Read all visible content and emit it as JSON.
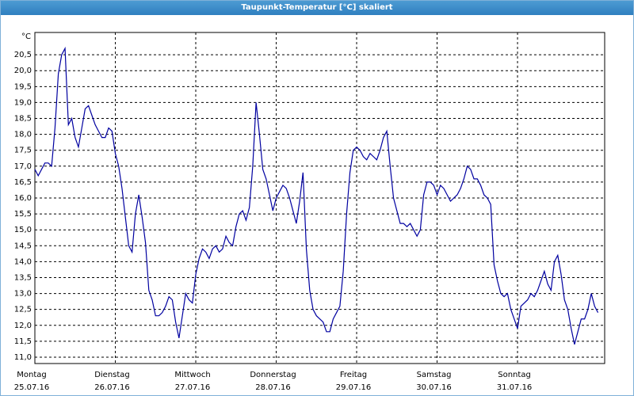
{
  "chart_data": {
    "type": "line",
    "title": "Taupunkt-Temperatur [°C] skaliert",
    "y_unit": "°C",
    "xlim": [
      0,
      170
    ],
    "xticks": [
      {
        "value": 0,
        "label": "Montag"
      },
      {
        "value": 24,
        "label": "Dienstag"
      },
      {
        "value": 48,
        "label": "Mittwoch"
      },
      {
        "value": 72,
        "label": "Donnerstag"
      },
      {
        "value": 96,
        "label": "Freitag"
      },
      {
        "value": 120,
        "label": "Samstag"
      },
      {
        "value": 144,
        "label": "Sonntag"
      }
    ],
    "xtick_dates": [
      "25.07.16",
      "26.07.16",
      "27.07.16",
      "28.07.16",
      "29.07.16",
      "30.07.16",
      "31.07.16"
    ],
    "ylim": [
      10.8,
      21.2
    ],
    "yticks": [
      {
        "value": 11.0,
        "label": "11,0"
      },
      {
        "value": 11.5,
        "label": "11,5"
      },
      {
        "value": 12.0,
        "label": "12,0"
      },
      {
        "value": 12.5,
        "label": "12,5"
      },
      {
        "value": 13.0,
        "label": "13,0"
      },
      {
        "value": 13.5,
        "label": "13,5"
      },
      {
        "value": 14.0,
        "label": "14,0"
      },
      {
        "value": 14.5,
        "label": "14,5"
      },
      {
        "value": 15.0,
        "label": "15,0"
      },
      {
        "value": 15.5,
        "label": "15,5"
      },
      {
        "value": 16.0,
        "label": "16,0"
      },
      {
        "value": 16.5,
        "label": "16,5"
      },
      {
        "value": 17.0,
        "label": "17,0"
      },
      {
        "value": 17.5,
        "label": "17,5"
      },
      {
        "value": 18.0,
        "label": "18,0"
      },
      {
        "value": 18.5,
        "label": "18,5"
      },
      {
        "value": 19.0,
        "label": "19,0"
      },
      {
        "value": 19.5,
        "label": "19,5"
      },
      {
        "value": 20.0,
        "label": "20,0"
      },
      {
        "value": 20.5,
        "label": "20,5"
      }
    ],
    "grid": true,
    "color": "#0000a0",
    "x": [
      0,
      1,
      2,
      3,
      4,
      5,
      6,
      7,
      8,
      9,
      10,
      11,
      12,
      13,
      14,
      15,
      16,
      17,
      18,
      19,
      20,
      21,
      22,
      23,
      24,
      25,
      26,
      27,
      28,
      29,
      30,
      31,
      32,
      33,
      34,
      35,
      36,
      37,
      38,
      39,
      40,
      41,
      42,
      43,
      44,
      45,
      46,
      47,
      48,
      49,
      50,
      51,
      52,
      53,
      54,
      55,
      56,
      57,
      58,
      59,
      60,
      61,
      62,
      63,
      64,
      65,
      66,
      67,
      68,
      69,
      70,
      71,
      72,
      73,
      74,
      75,
      76,
      77,
      78,
      79,
      80,
      81,
      82,
      83,
      84,
      85,
      86,
      87,
      88,
      89,
      90,
      91,
      92,
      93,
      94,
      95,
      96,
      97,
      98,
      99,
      100,
      101,
      102,
      103,
      104,
      105,
      106,
      107,
      108,
      109,
      110,
      111,
      112,
      113,
      114,
      115,
      116,
      117,
      118,
      119,
      120,
      121,
      122,
      123,
      124,
      125,
      126,
      127,
      128,
      129,
      130,
      131,
      132,
      133,
      134,
      135,
      136,
      137,
      138,
      139,
      140,
      141,
      142,
      143,
      144,
      145,
      146,
      147,
      148,
      149,
      150,
      151,
      152,
      153,
      154,
      155,
      156,
      157,
      158,
      159,
      160,
      161,
      162,
      163,
      164,
      165,
      166,
      167,
      168
    ],
    "values": [
      16.9,
      16.7,
      16.9,
      17.1,
      17.1,
      17.0,
      18.2,
      19.9,
      20.5,
      20.7,
      18.3,
      18.5,
      17.9,
      17.6,
      18.2,
      18.8,
      18.9,
      18.6,
      18.3,
      18.1,
      17.9,
      17.9,
      18.2,
      18.1,
      17.4,
      17.0,
      16.3,
      15.4,
      14.5,
      14.3,
      15.5,
      16.1,
      15.4,
      14.6,
      13.1,
      12.8,
      12.3,
      12.3,
      12.4,
      12.6,
      12.9,
      12.8,
      12.1,
      11.6,
      12.3,
      13.0,
      12.8,
      12.7,
      13.6,
      14.1,
      14.4,
      14.3,
      14.1,
      14.4,
      14.5,
      14.3,
      14.4,
      14.8,
      14.6,
      14.5,
      15.1,
      15.5,
      15.6,
      15.3,
      15.7,
      17.0,
      19.0,
      18.0,
      16.9,
      16.6,
      16.1,
      15.6,
      16.0,
      16.2,
      16.4,
      16.3,
      16.0,
      15.6,
      15.2,
      15.9,
      16.8,
      14.4,
      13.1,
      12.5,
      12.3,
      12.2,
      12.1,
      11.8,
      11.8,
      12.2,
      12.4,
      12.6,
      13.7,
      15.5,
      16.8,
      17.5,
      17.6,
      17.5,
      17.3,
      17.2,
      17.4,
      17.3,
      17.2,
      17.5,
      17.9,
      18.1,
      17.0,
      16.0,
      15.6,
      15.2,
      15.2,
      15.1,
      15.2,
      15.0,
      14.8,
      15.0,
      16.1,
      16.5,
      16.5,
      16.4,
      16.1,
      16.4,
      16.3,
      16.1,
      15.9,
      16.0,
      16.1,
      16.3,
      16.6,
      17.0,
      16.9,
      16.6,
      16.6,
      16.4,
      16.1,
      16.0,
      15.8,
      13.9,
      13.4,
      13.0,
      12.9,
      13.0,
      12.5,
      12.2,
      11.9,
      12.6,
      12.7,
      12.8,
      13.0,
      12.9,
      13.1,
      13.4,
      13.7,
      13.3,
      13.1,
      14.0,
      14.2,
      13.6,
      12.8,
      12.5,
      11.9,
      11.4,
      11.8,
      12.2,
      12.2,
      12.5,
      13.0,
      12.6,
      12.4
    ]
  }
}
